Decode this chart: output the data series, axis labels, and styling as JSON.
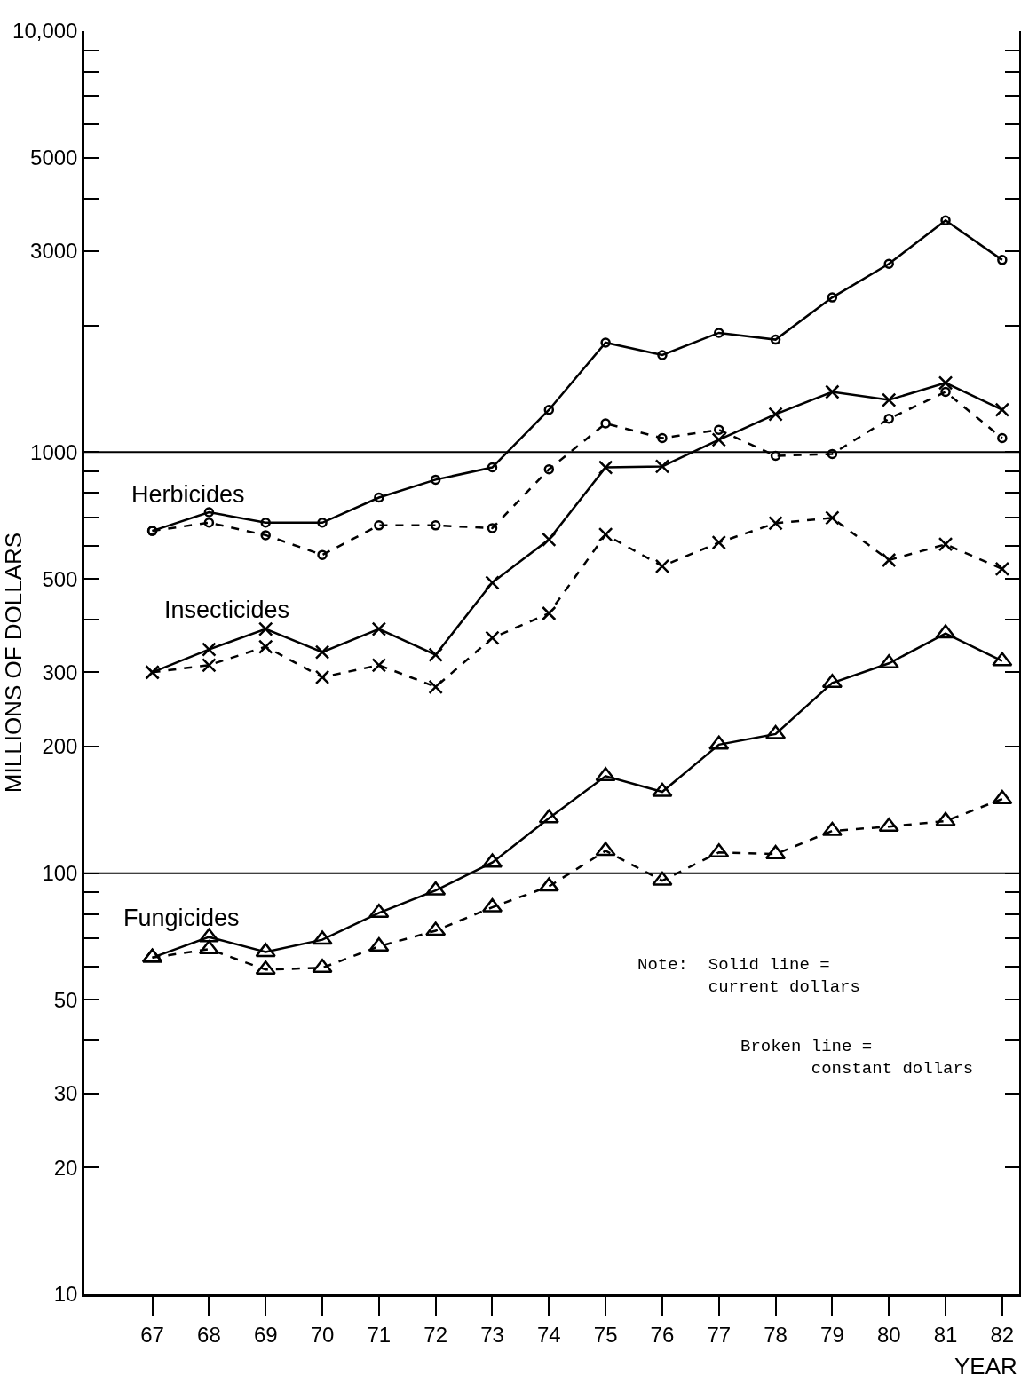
{
  "chart_data": {
    "type": "line",
    "xlabel": "YEAR",
    "ylabel": "MILLIONS OF DOLLARS",
    "log": "y",
    "grid": false,
    "x": [
      67,
      68,
      69,
      70,
      71,
      72,
      73,
      74,
      75,
      76,
      77,
      78,
      79,
      80,
      81,
      82
    ],
    "xlim": [
      65.8,
      82.3
    ],
    "xticks": [
      67,
      68,
      69,
      70,
      71,
      72,
      73,
      74,
      75,
      76,
      77,
      78,
      79,
      80,
      81,
      82
    ],
    "ylim": [
      10,
      10000
    ],
    "yticks": [
      10,
      20,
      30,
      {
        "value": 40,
        "label": null
      },
      50,
      {
        "value": 60,
        "label": null
      },
      {
        "value": 70,
        "label": null
      },
      {
        "value": 80,
        "label": null
      },
      {
        "value": 90,
        "label": null
      },
      100,
      200,
      300,
      {
        "value": 400,
        "label": null
      },
      500,
      {
        "value": 600,
        "label": null
      },
      {
        "value": 700,
        "label": null
      },
      {
        "value": 800,
        "label": null
      },
      {
        "value": 900,
        "label": null
      },
      1000,
      {
        "value": 2000,
        "label": null
      },
      3000,
      {
        "value": 4000,
        "label": null
      },
      {
        "value": 5000,
        "label": "5000"
      },
      {
        "value": 6000,
        "label": null
      },
      {
        "value": 7000,
        "label": null
      },
      {
        "value": 8000,
        "label": null
      },
      {
        "value": 9000,
        "label": null
      },
      {
        "value": 10000,
        "label": "10,000"
      }
    ],
    "ref_lines": [
      {
        "axis": "y",
        "value": 100,
        "color": "#000000",
        "line_style": "solid"
      },
      {
        "axis": "y",
        "value": 1000,
        "color": "#000000",
        "line_style": "solid"
      }
    ],
    "series": [
      {
        "color": "#000000",
        "marker": "circle",
        "line_style": "solid",
        "values": [
          650,
          720,
          680,
          680,
          780,
          860,
          920,
          1260,
          1820,
          1700,
          1920,
          1850,
          2330,
          2800,
          3550,
          2860
        ]
      },
      {
        "color": "#000000",
        "marker": "circle",
        "line_style": "dashed",
        "values": [
          650,
          680,
          635,
          570,
          670,
          670,
          660,
          910,
          1170,
          1080,
          1130,
          980,
          990,
          1200,
          1390,
          1080
        ]
      },
      {
        "color": "#000000",
        "marker": "cross",
        "line_style": "solid",
        "values": [
          300,
          340,
          380,
          335,
          380,
          330,
          490,
          620,
          920,
          925,
          1070,
          1230,
          1390,
          1330,
          1460,
          1260
        ]
      },
      {
        "color": "#000000",
        "marker": "cross",
        "line_style": "dashed",
        "values": [
          300,
          312,
          345,
          292,
          312,
          277,
          362,
          414,
          637,
          536,
          610,
          678,
          698,
          554,
          604,
          528
        ]
      },
      {
        "color": "#000000",
        "marker": "triangle",
        "line_style": "solid",
        "values": [
          63,
          70.5,
          65,
          69.5,
          80.5,
          91,
          106,
          135,
          170,
          156,
          202,
          214,
          283,
          315,
          371,
          319
        ]
      },
      {
        "color": "#000000",
        "marker": "triangle",
        "line_style": "dashed",
        "values": [
          63,
          66,
          59,
          59.6,
          67,
          73,
          83,
          93,
          113,
          96,
          112,
          111,
          126,
          129,
          133,
          150
        ]
      }
    ],
    "annotations": [
      "Herbicides",
      "Insecticides",
      "Fungicides",
      "Note:  Solid line =\n       current dollars",
      "Broken line =\n       constant dollars"
    ]
  }
}
